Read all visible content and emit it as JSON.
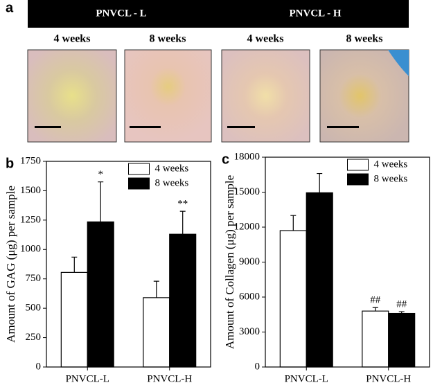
{
  "panel_a": {
    "label": "a",
    "groups": [
      "PNVCL - L",
      "PNVCL - H"
    ],
    "photos": [
      "4 weeks",
      "8 weeks",
      "4 weeks",
      "8 weeks"
    ]
  },
  "chart_data": [
    {
      "type": "bar",
      "panel_label": "b",
      "ylabel": "Amount of GAG (μg) per sample",
      "categories": [
        "PNVCL-L",
        "PNVCL-H"
      ],
      "series": [
        {
          "name": "4 weeks",
          "color": "#ffffff",
          "values": [
            805,
            590
          ],
          "errors": [
            130,
            140
          ]
        },
        {
          "name": "8 weeks",
          "color": "#000000",
          "values": [
            1235,
            1130
          ],
          "errors": [
            340,
            195
          ],
          "annotations": [
            "*",
            "**"
          ]
        }
      ],
      "ylim": [
        0,
        1750
      ],
      "yticks": [
        0,
        250,
        500,
        750,
        1000,
        1250,
        1500,
        1750
      ],
      "legend": "upper right"
    },
    {
      "type": "bar",
      "panel_label": "c",
      "ylabel": "Amount of Collagen (μg) per sample",
      "categories": [
        "PNVCL-L",
        "PNVCL-H"
      ],
      "series": [
        {
          "name": "4 weeks",
          "color": "#ffffff",
          "values": [
            11700,
            4800
          ],
          "errors": [
            1300,
            300
          ],
          "annotations": [
            null,
            "##"
          ]
        },
        {
          "name": "8 weeks",
          "color": "#000000",
          "values": [
            14950,
            4600
          ],
          "errors": [
            1650,
            150
          ],
          "annotations": [
            null,
            "##"
          ]
        }
      ],
      "ylim": [
        0,
        18000
      ],
      "yticks": [
        0,
        3000,
        6000,
        9000,
        12000,
        15000,
        18000
      ],
      "legend": "upper right"
    }
  ]
}
